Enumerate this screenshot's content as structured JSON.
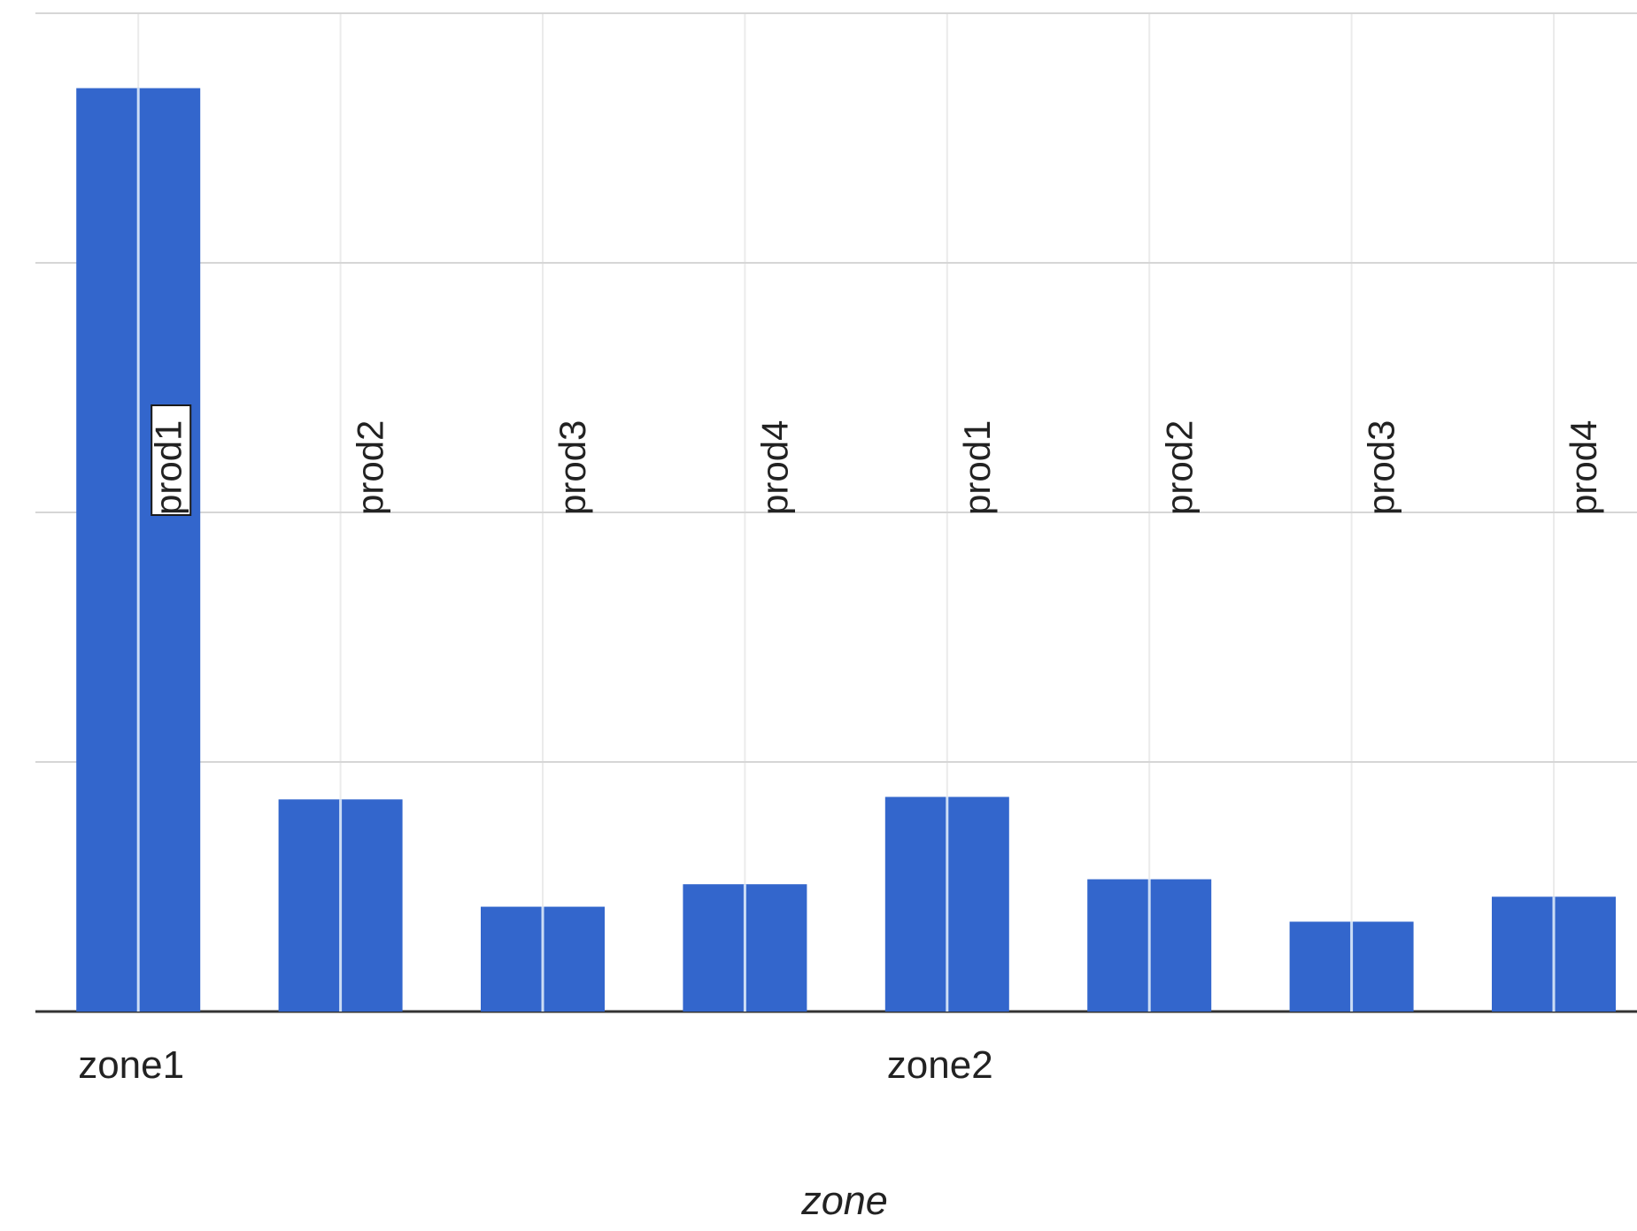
{
  "chart_data": {
    "type": "bar",
    "title": "",
    "xlabel": "zone",
    "ylabel": "",
    "groups": [
      "zone1",
      "zone2"
    ],
    "categories": [
      "prod1",
      "prod2",
      "prod3",
      "prod4",
      "prod1",
      "prod2",
      "prod3",
      "prod4"
    ],
    "group_of_category": [
      "zone1",
      "zone1",
      "zone1",
      "zone1",
      "zone2",
      "zone2",
      "zone2",
      "zone2"
    ],
    "values": [
      3.7,
      0.85,
      0.42,
      0.51,
      0.86,
      0.53,
      0.36,
      0.46
    ],
    "ylim": [
      0,
      4
    ],
    "y_gridlines": [
      0,
      1,
      2,
      3,
      4
    ],
    "grid": true,
    "legend": "none"
  },
  "colors": {
    "bar": "#3366cc",
    "bar_divider": "#ccddf5",
    "grid": "#d6d6d6",
    "vgrid": "#ebebeb",
    "axis": "#333333",
    "text": "#222222"
  }
}
